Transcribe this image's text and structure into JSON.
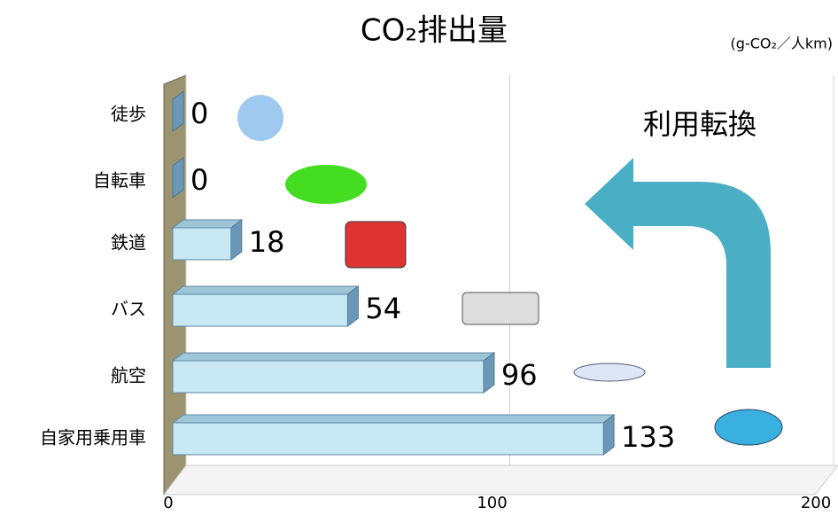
{
  "chart_data": {
    "type": "bar3d",
    "title": "CO₂排出量",
    "unit_label": "(g-CO₂／人km)",
    "annotation": "利用転換",
    "categories": [
      "徒歩",
      "自転車",
      "鉄道",
      "バス",
      "航空",
      "自家用乗用車"
    ],
    "values": [
      0,
      0,
      18,
      54,
      96,
      133
    ],
    "color": "#c8e9f3",
    "xlim": [
      0,
      200
    ],
    "xticks": [
      0,
      100,
      200
    ],
    "grid": true
  }
}
